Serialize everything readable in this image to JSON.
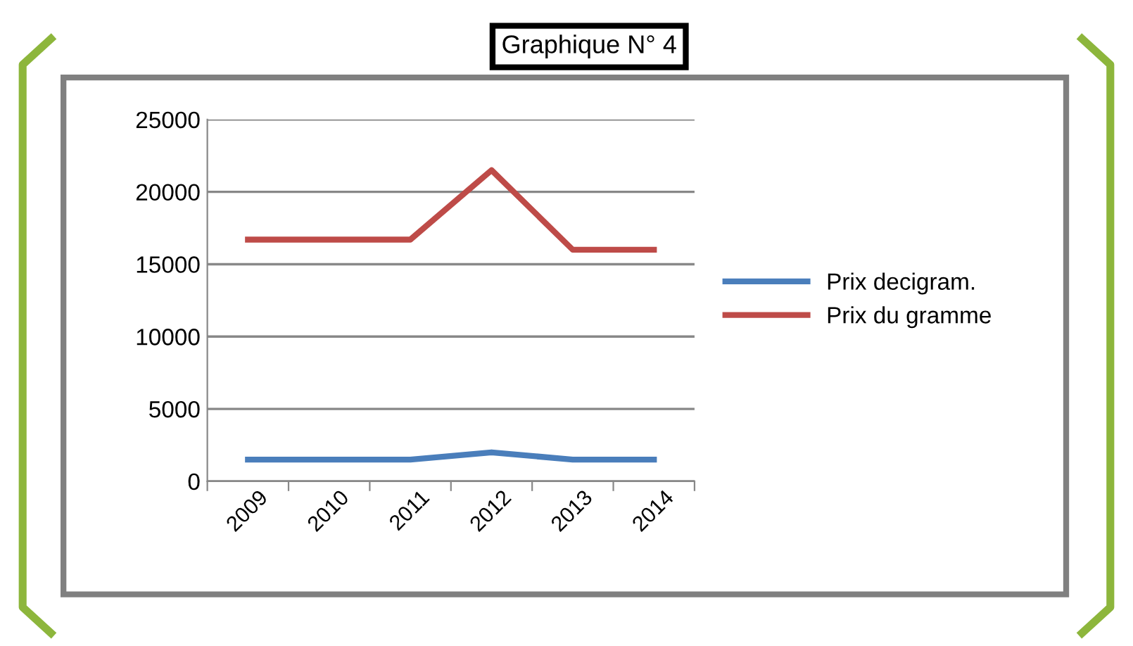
{
  "chart_data": {
    "type": "line",
    "title": "Graphique N° 4",
    "categories": [
      "2009",
      "2010",
      "2011",
      "2012",
      "2013",
      "2014"
    ],
    "series": [
      {
        "name": "Prix decigram.",
        "color": "#4a7ebb",
        "values": [
          1500,
          1500,
          1500,
          2000,
          1500,
          1500
        ]
      },
      {
        "name": "Prix du gramme",
        "color": "#be4b48",
        "values": [
          16700,
          16700,
          16700,
          21500,
          16000,
          16000
        ]
      }
    ],
    "ylim": [
      0,
      25000
    ],
    "yticks": [
      0,
      5000,
      10000,
      15000,
      20000,
      25000
    ],
    "grid": "y",
    "legend": "right",
    "marker": "none",
    "line_style": "solid"
  }
}
